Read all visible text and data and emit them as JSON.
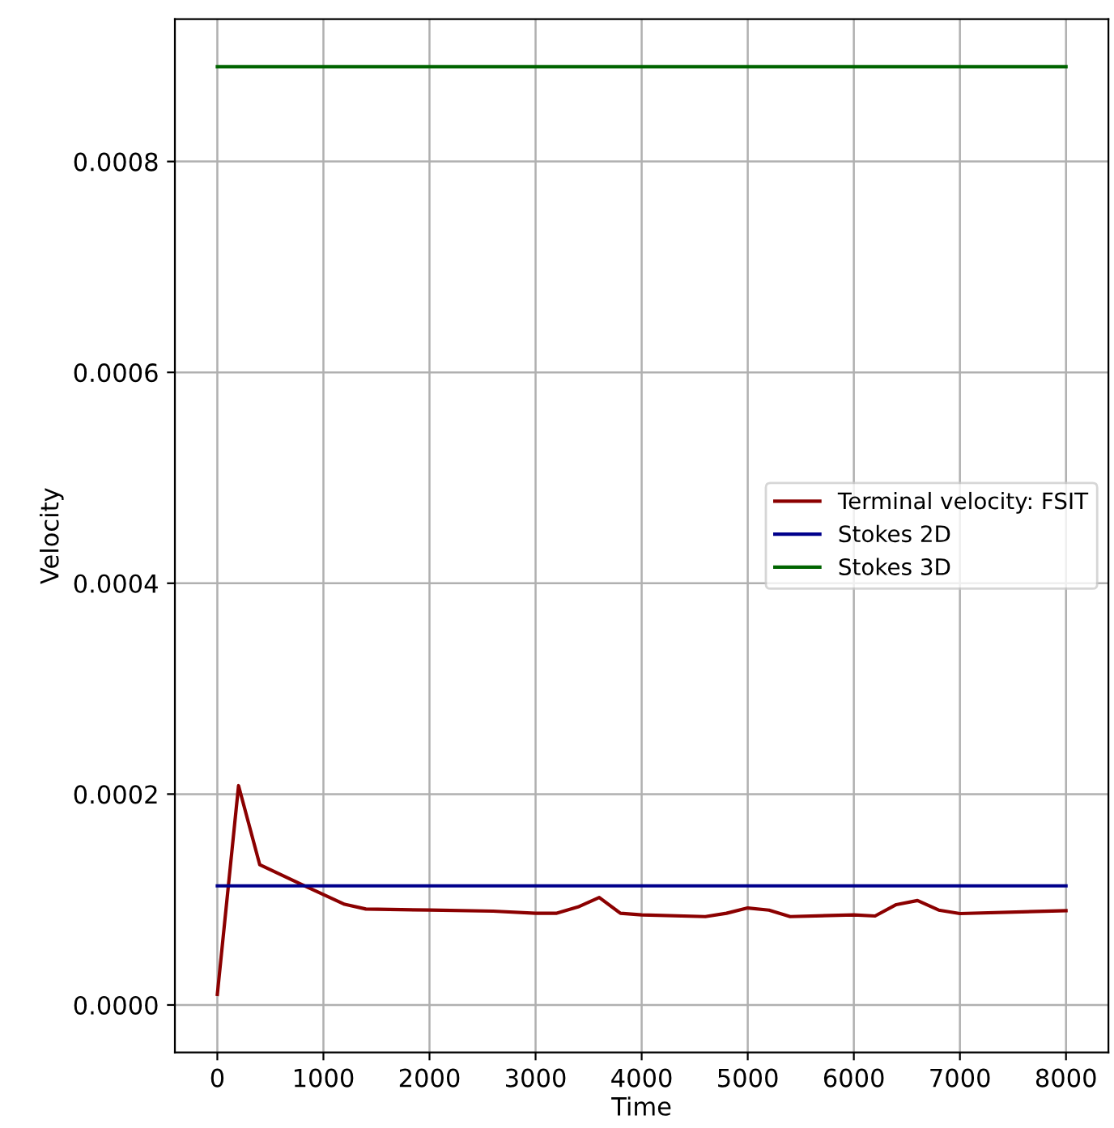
{
  "chart_data": {
    "type": "line",
    "xlabel": "Time",
    "ylabel": "Velocity",
    "xlim": [
      -400,
      8400
    ],
    "xticks": [
      0,
      1000,
      2000,
      3000,
      4000,
      5000,
      6000,
      7000,
      8000
    ],
    "ylim": [
      -4.5e-05,
      0.000935
    ],
    "yticks": [
      {
        "value": 0,
        "label": "0.0000"
      },
      {
        "value": 0.0002,
        "label": "0.0002"
      },
      {
        "value": 0.0004,
        "label": "0.0004"
      },
      {
        "value": 0.0006,
        "label": "0.0006"
      },
      {
        "value": 0.0008,
        "label": "0.0008"
      }
    ],
    "grid": true,
    "legend": "right",
    "series": [
      {
        "name": "Terminal velocity: FSIT",
        "color": "#8b0000",
        "x": [
          0,
          200,
          400,
          800,
          1200,
          1400,
          2000,
          2600,
          3000,
          3200,
          3400,
          3600,
          3800,
          4000,
          4600,
          4800,
          5000,
          5200,
          5400,
          6000,
          6200,
          6400,
          6600,
          6800,
          7000,
          8000
        ],
        "values": [
          1e-05,
          0.000208,
          0.000133,
          0.000114,
          9.55e-05,
          9.1e-05,
          9e-05,
          8.9e-05,
          8.7e-05,
          8.7e-05,
          9.3e-05,
          0.000102,
          8.7e-05,
          8.55e-05,
          8.38e-05,
          8.7e-05,
          9.2e-05,
          9e-05,
          8.38e-05,
          8.55e-05,
          8.44e-05,
          9.52e-05,
          9.91e-05,
          9e-05,
          8.67e-05,
          8.95e-05
        ]
      },
      {
        "name": "Stokes 2D",
        "color": "#00008b",
        "x": [
          0,
          8000
        ],
        "values": [
          0.000113,
          0.000113
        ]
      },
      {
        "name": "Stokes 3D",
        "color": "#006400",
        "x": [
          0,
          8000
        ],
        "values": [
          0.00089,
          0.00089
        ]
      }
    ]
  }
}
